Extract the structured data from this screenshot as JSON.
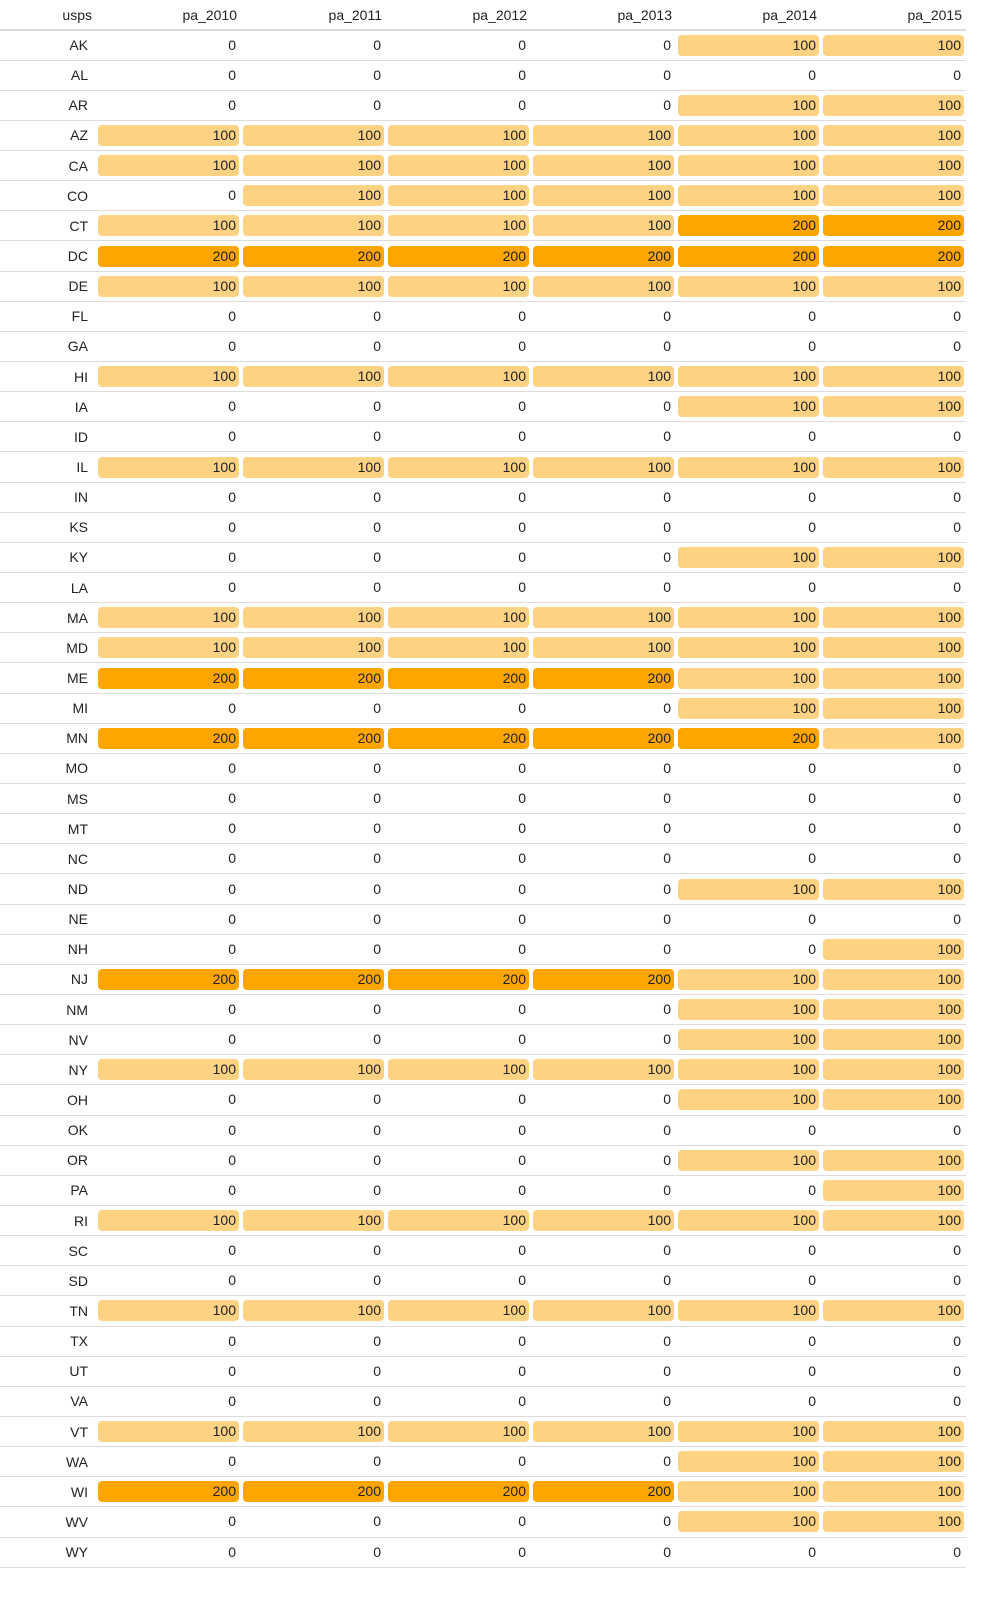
{
  "table": {
    "columns": [
      "usps",
      "pa_2010",
      "pa_2011",
      "pa_2012",
      "pa_2013",
      "pa_2014",
      "pa_2015"
    ],
    "rows": [
      {
        "state": "AK",
        "values": [
          "0",
          "0",
          "0",
          "0",
          "100",
          "100"
        ]
      },
      {
        "state": "AL",
        "values": [
          "0",
          "0",
          "0",
          "0",
          "0",
          "0"
        ]
      },
      {
        "state": "AR",
        "values": [
          "0",
          "0",
          "0",
          "0",
          "100",
          "100"
        ]
      },
      {
        "state": "AZ",
        "values": [
          "100",
          "100",
          "100",
          "100",
          "100",
          "100"
        ]
      },
      {
        "state": "CA",
        "values": [
          "100",
          "100",
          "100",
          "100",
          "100",
          "100"
        ]
      },
      {
        "state": "CO",
        "values": [
          "0",
          "100",
          "100",
          "100",
          "100",
          "100"
        ]
      },
      {
        "state": "CT",
        "values": [
          "100",
          "100",
          "100",
          "100",
          "200",
          "200"
        ]
      },
      {
        "state": "DC",
        "values": [
          "200",
          "200",
          "200",
          "200",
          "200",
          "200"
        ]
      },
      {
        "state": "DE",
        "values": [
          "100",
          "100",
          "100",
          "100",
          "100",
          "100"
        ]
      },
      {
        "state": "FL",
        "values": [
          "0",
          "0",
          "0",
          "0",
          "0",
          "0"
        ]
      },
      {
        "state": "GA",
        "values": [
          "0",
          "0",
          "0",
          "0",
          "0",
          "0"
        ]
      },
      {
        "state": "HI",
        "values": [
          "100",
          "100",
          "100",
          "100",
          "100",
          "100"
        ]
      },
      {
        "state": "IA",
        "values": [
          "0",
          "0",
          "0",
          "0",
          "100",
          "100"
        ]
      },
      {
        "state": "ID",
        "values": [
          "0",
          "0",
          "0",
          "0",
          "0",
          "0"
        ]
      },
      {
        "state": "IL",
        "values": [
          "100",
          "100",
          "100",
          "100",
          "100",
          "100"
        ]
      },
      {
        "state": "IN",
        "values": [
          "0",
          "0",
          "0",
          "0",
          "0",
          "0"
        ]
      },
      {
        "state": "KS",
        "values": [
          "0",
          "0",
          "0",
          "0",
          "0",
          "0"
        ]
      },
      {
        "state": "KY",
        "values": [
          "0",
          "0",
          "0",
          "0",
          "100",
          "100"
        ]
      },
      {
        "state": "LA",
        "values": [
          "0",
          "0",
          "0",
          "0",
          "0",
          "0"
        ]
      },
      {
        "state": "MA",
        "values": [
          "100",
          "100",
          "100",
          "100",
          "100",
          "100"
        ]
      },
      {
        "state": "MD",
        "values": [
          "100",
          "100",
          "100",
          "100",
          "100",
          "100"
        ]
      },
      {
        "state": "ME",
        "values": [
          "200",
          "200",
          "200",
          "200",
          "100",
          "100"
        ]
      },
      {
        "state": "MI",
        "values": [
          "0",
          "0",
          "0",
          "0",
          "100",
          "100"
        ]
      },
      {
        "state": "MN",
        "values": [
          "200",
          "200",
          "200",
          "200",
          "200",
          "100"
        ]
      },
      {
        "state": "MO",
        "values": [
          "0",
          "0",
          "0",
          "0",
          "0",
          "0"
        ]
      },
      {
        "state": "MS",
        "values": [
          "0",
          "0",
          "0",
          "0",
          "0",
          "0"
        ]
      },
      {
        "state": "MT",
        "values": [
          "0",
          "0",
          "0",
          "0",
          "0",
          "0"
        ]
      },
      {
        "state": "NC",
        "values": [
          "0",
          "0",
          "0",
          "0",
          "0",
          "0"
        ]
      },
      {
        "state": "ND",
        "values": [
          "0",
          "0",
          "0",
          "0",
          "100",
          "100"
        ]
      },
      {
        "state": "NE",
        "values": [
          "0",
          "0",
          "0",
          "0",
          "0",
          "0"
        ]
      },
      {
        "state": "NH",
        "values": [
          "0",
          "0",
          "0",
          "0",
          "0",
          "100"
        ]
      },
      {
        "state": "NJ",
        "values": [
          "200",
          "200",
          "200",
          "200",
          "100",
          "100"
        ]
      },
      {
        "state": "NM",
        "values": [
          "0",
          "0",
          "0",
          "0",
          "100",
          "100"
        ]
      },
      {
        "state": "NV",
        "values": [
          "0",
          "0",
          "0",
          "0",
          "100",
          "100"
        ]
      },
      {
        "state": "NY",
        "values": [
          "100",
          "100",
          "100",
          "100",
          "100",
          "100"
        ]
      },
      {
        "state": "OH",
        "values": [
          "0",
          "0",
          "0",
          "0",
          "100",
          "100"
        ]
      },
      {
        "state": "OK",
        "values": [
          "0",
          "0",
          "0",
          "0",
          "0",
          "0"
        ]
      },
      {
        "state": "OR",
        "values": [
          "0",
          "0",
          "0",
          "0",
          "100",
          "100"
        ]
      },
      {
        "state": "PA",
        "values": [
          "0",
          "0",
          "0",
          "0",
          "0",
          "100"
        ]
      },
      {
        "state": "RI",
        "values": [
          "100",
          "100",
          "100",
          "100",
          "100",
          "100"
        ]
      },
      {
        "state": "SC",
        "values": [
          "0",
          "0",
          "0",
          "0",
          "0",
          "0"
        ]
      },
      {
        "state": "SD",
        "values": [
          "0",
          "0",
          "0",
          "0",
          "0",
          "0"
        ]
      },
      {
        "state": "TN",
        "values": [
          "100",
          "100",
          "100",
          "100",
          "100",
          "100"
        ]
      },
      {
        "state": "TX",
        "values": [
          "0",
          "0",
          "0",
          "0",
          "0",
          "0"
        ]
      },
      {
        "state": "UT",
        "values": [
          "0",
          "0",
          "0",
          "0",
          "0",
          "0"
        ]
      },
      {
        "state": "VA",
        "values": [
          "0",
          "0",
          "0",
          "0",
          "0",
          "0"
        ]
      },
      {
        "state": "VT",
        "values": [
          "100",
          "100",
          "100",
          "100",
          "100",
          "100"
        ]
      },
      {
        "state": "WA",
        "values": [
          "0",
          "0",
          "0",
          "0",
          "100",
          "100"
        ]
      },
      {
        "state": "WI",
        "values": [
          "200",
          "200",
          "200",
          "200",
          "100",
          "100"
        ]
      },
      {
        "state": "WV",
        "values": [
          "0",
          "0",
          "0",
          "0",
          "100",
          "100"
        ]
      },
      {
        "state": "WY",
        "values": [
          "0",
          "0",
          "0",
          "0",
          "0",
          "0"
        ]
      }
    ]
  },
  "colors": {
    "value_100": "#fdd283",
    "value_200": "#fea500",
    "value_0": "#ffffff"
  }
}
